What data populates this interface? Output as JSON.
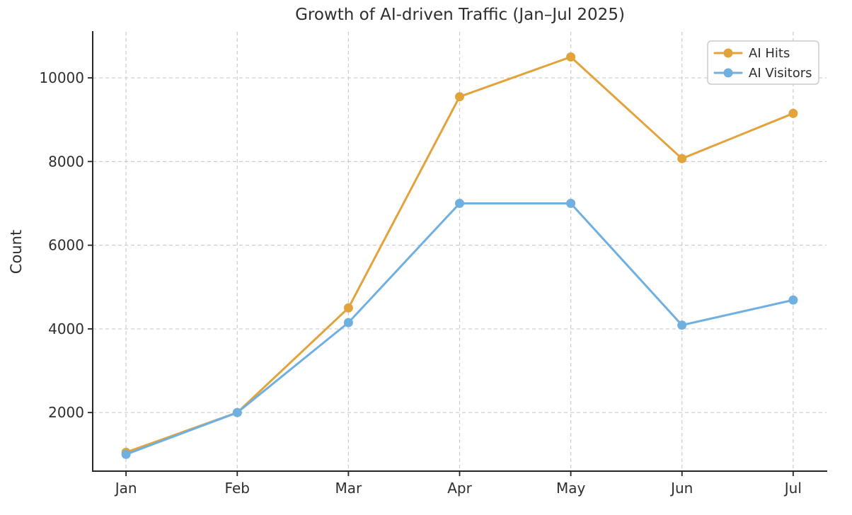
{
  "chart_data": {
    "type": "line",
    "title": "Growth of AI-driven Traffic (Jan–Jul 2025)",
    "xlabel": "",
    "ylabel": "Count",
    "categories": [
      "Jan",
      "Feb",
      "Mar",
      "Apr",
      "May",
      "Jun",
      "Jul"
    ],
    "series": [
      {
        "name": "AI Hits",
        "color": "#E2A33B",
        "marker": "circle",
        "values": [
          1050,
          2000,
          4500,
          9550,
          10500,
          8070,
          9150
        ]
      },
      {
        "name": "AI Visitors",
        "color": "#6FB0E0",
        "marker": "circle",
        "values": [
          1000,
          2000,
          4150,
          7000,
          7000,
          4090,
          4690
        ]
      }
    ],
    "yticks": [
      2000,
      4000,
      6000,
      8000,
      10000
    ],
    "ylim": [
      600,
      11100
    ],
    "grid": true,
    "grid_style": "dashed",
    "legend_position": "upper-right",
    "colors": {
      "grid": "#cccccc",
      "spine": "#262626",
      "text": "#2e2e2e",
      "legend_border": "#cccccc",
      "background": "#ffffff"
    }
  }
}
